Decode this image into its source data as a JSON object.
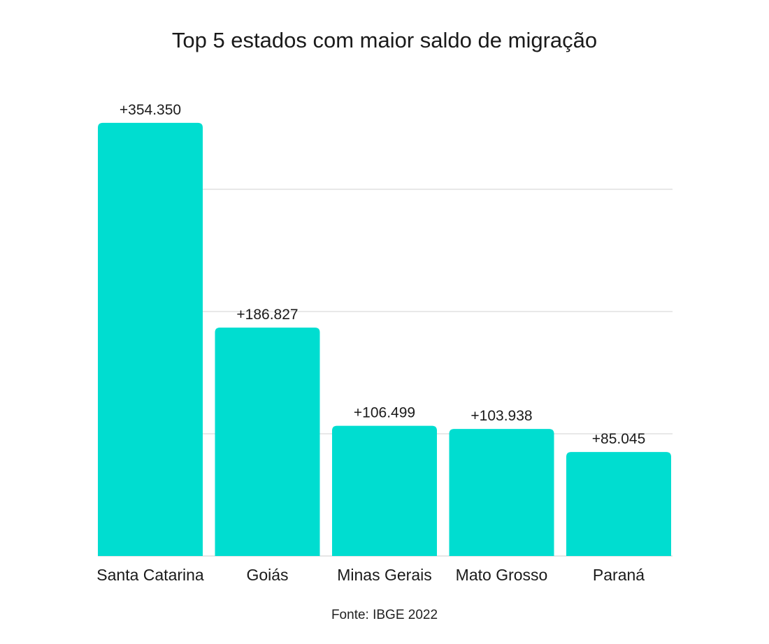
{
  "chart_data": {
    "type": "bar",
    "title": "Top 5 estados com maior saldo de migração",
    "categories": [
      "Santa Catarina",
      "Goiás",
      "Minas Gerais",
      "Mato Grosso",
      "Paraná"
    ],
    "values": [
      354350,
      186827,
      106499,
      103938,
      85045
    ],
    "value_labels": [
      "+354.350",
      "+186.827",
      "+106.499",
      "+103.938",
      "+85.045"
    ],
    "xlabel": "",
    "ylabel": "",
    "ylim": [
      0,
      400000
    ],
    "y_gridlines": [
      100000,
      200000,
      300000
    ],
    "grid": true,
    "legend": "none",
    "source": "Fonte: IBGE 2022",
    "colors": {
      "bar": "#00ddd0",
      "grid": "#d9d9d9",
      "axis": "#cccccc"
    }
  }
}
